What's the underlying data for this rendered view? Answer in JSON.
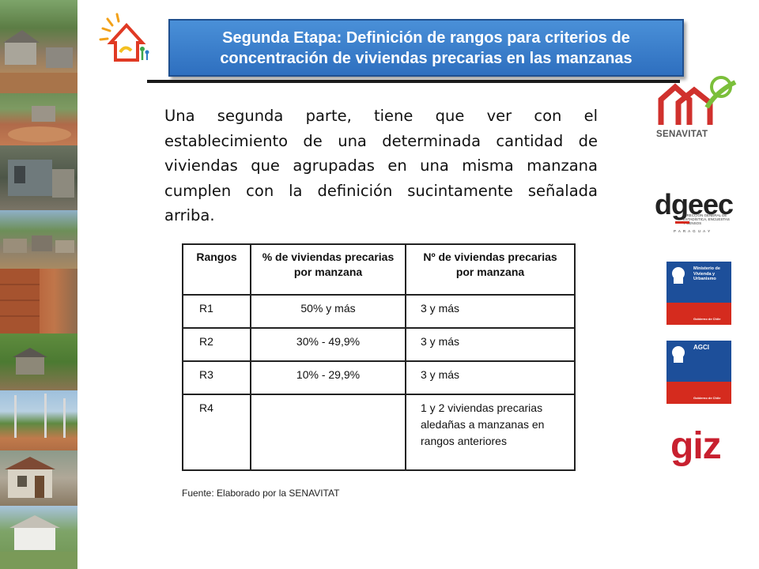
{
  "header": {
    "title": "Segunda Etapa: Definición de rangos para criterios de concentración de viviendas precarias en las manzanas"
  },
  "body": {
    "paragraph": "Una segunda parte, tiene que ver con el establecimiento de una determinada cantidad de viviendas que agrupadas en una misma manzana cumplen con la definición sucintamente señalada arriba."
  },
  "table": {
    "headers": [
      "Rangos",
      "% de viviendas precarias por manzana",
      "Nº de viviendas precarias por manzana"
    ],
    "rows": [
      [
        "R1",
        "50% y más",
        "3 y más"
      ],
      [
        "R2",
        "30% - 49,9%",
        "3 y más"
      ],
      [
        "R3",
        "10% - 29,9%",
        "3 y más"
      ],
      [
        "R4",
        "",
        "1 y 2 viviendas precarias aledañas a manzanas en rangos anteriores"
      ]
    ]
  },
  "source": "Fuente: Elaborado por la SENAVITAT",
  "logos": {
    "senavitat": "SENAVITAT",
    "dgeec": "dgeec",
    "dgeec_sub": "DIRECCIÓN GENERAL DE ESTADÍSTICA, ENCUESTAS Y CENSOS",
    "dgeec_country": "P A R A G U A Y",
    "gov1": "Ministerio de Vivienda y Urbanismo",
    "gov1_footer": "Gobierno de Chile",
    "gov2": "AGCI",
    "gov2_footer": "Gobierno de Chile",
    "giz": "giz"
  },
  "colors": {
    "banner": "#2e6fbf",
    "giz_red": "#c8202f",
    "chile_blue": "#1d4f9a",
    "chile_red": "#d52b1e",
    "senavitat_red": "#d0312d",
    "senavitat_green": "#7bbf3a"
  }
}
